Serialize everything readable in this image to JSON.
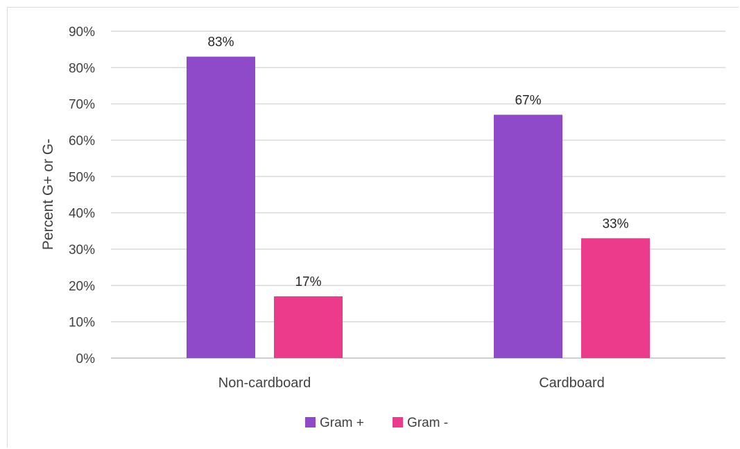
{
  "chart_data": {
    "type": "bar",
    "categories": [
      "Non-cardboard",
      "Cardboard"
    ],
    "series": [
      {
        "name": "Gram +",
        "values": [
          83,
          67
        ],
        "color": "#8e4ac8",
        "labels": [
          "83%",
          "67%"
        ]
      },
      {
        "name": "Gram -",
        "values": [
          17,
          33
        ],
        "color": "#eb3b8a",
        "labels": [
          "17%",
          "33%"
        ]
      }
    ],
    "title": "",
    "xlabel": "",
    "ylabel": "Percent G+ or G-",
    "ylim": [
      0,
      90
    ],
    "yticks": [
      "0%",
      "10%",
      "20%",
      "30%",
      "40%",
      "50%",
      "60%",
      "70%",
      "80%",
      "90%"
    ],
    "grid": true,
    "legend": "bottom"
  }
}
